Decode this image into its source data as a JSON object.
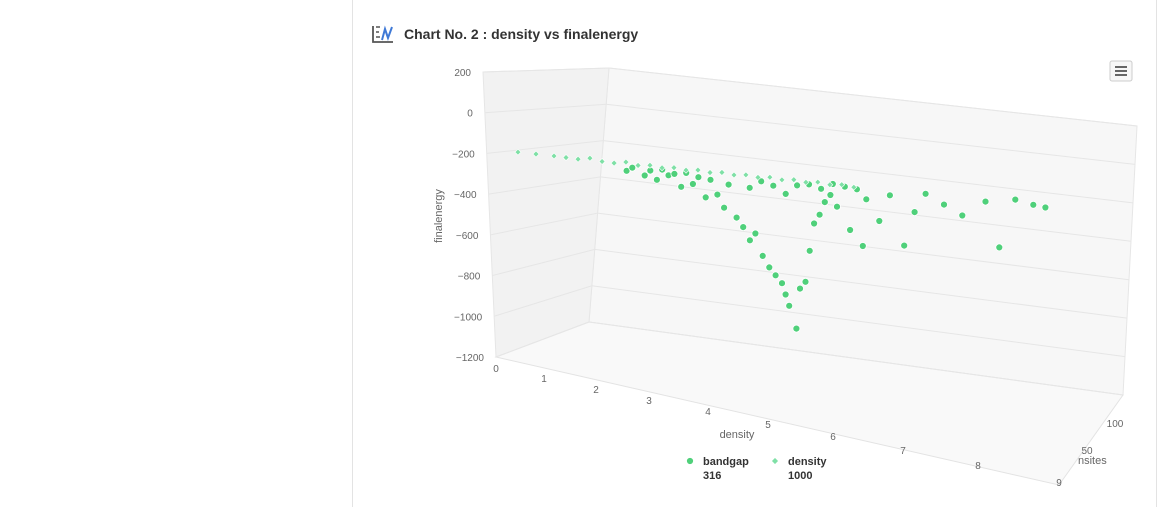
{
  "header": {
    "title": "Chart No. 2 : density vs finalenergy"
  },
  "icons": {
    "chart_icon": "line-chart-icon",
    "menu_icon": "hamburger-menu-icon"
  },
  "colors": {
    "bandgap": "#4fd07a",
    "density": "#7fe0a6",
    "grid": "#e6e6e6"
  },
  "chart_data": {
    "type": "scatter",
    "title": "Chart No. 2 : density vs finalenergy",
    "xlabel": "density",
    "ylabel": "finalenergy",
    "zlabel": "nsites",
    "x_ticks": [
      "0",
      "1",
      "2",
      "3",
      "4",
      "5",
      "6",
      "7",
      "8",
      "9"
    ],
    "y_ticks": [
      "200",
      "0",
      "−200",
      "−400",
      "−600",
      "−800",
      "−1000",
      "−1200"
    ],
    "z_ticks": [
      "50",
      "100"
    ],
    "xlim": [
      0,
      9
    ],
    "ylim": [
      -1200,
      200
    ],
    "zlim": [
      0,
      100
    ],
    "grid": true,
    "legend_position": "bottom",
    "series": [
      {
        "name": "bandgap",
        "count": "316",
        "marker": "circle",
        "points": [
          [
            2.0,
            -80
          ],
          [
            2.3,
            -100
          ],
          [
            2.5,
            -120
          ],
          [
            2.7,
            -90
          ],
          [
            2.9,
            -150
          ],
          [
            3.1,
            -130
          ],
          [
            3.3,
            -200
          ],
          [
            3.5,
            -180
          ],
          [
            3.6,
            -250
          ],
          [
            3.8,
            -300
          ],
          [
            3.9,
            -350
          ],
          [
            4.0,
            -420
          ],
          [
            4.1,
            -380
          ],
          [
            4.2,
            -500
          ],
          [
            4.3,
            -560
          ],
          [
            4.4,
            -600
          ],
          [
            4.5,
            -640
          ],
          [
            4.55,
            -700
          ],
          [
            4.6,
            -760
          ],
          [
            4.7,
            -880
          ],
          [
            4.8,
            -660
          ],
          [
            4.9,
            -620
          ],
          [
            5.0,
            -450
          ],
          [
            5.1,
            -300
          ],
          [
            5.2,
            -250
          ],
          [
            5.3,
            -180
          ],
          [
            5.4,
            -140
          ],
          [
            5.5,
            -200
          ],
          [
            5.7,
            -320
          ],
          [
            5.9,
            -400
          ],
          [
            6.0,
            -150
          ],
          [
            6.2,
            -260
          ],
          [
            6.4,
            -120
          ],
          [
            6.6,
            -380
          ],
          [
            6.8,
            -200
          ],
          [
            7.0,
            -100
          ],
          [
            7.3,
            -150
          ],
          [
            7.6,
            -200
          ],
          [
            8.0,
            -120
          ],
          [
            8.2,
            -350
          ],
          [
            8.5,
            -100
          ],
          [
            8.8,
            -120
          ],
          [
            9.0,
            -130
          ],
          [
            2.1,
            -60
          ],
          [
            2.4,
            -70
          ],
          [
            2.6,
            -60
          ],
          [
            2.8,
            -80
          ],
          [
            3.0,
            -70
          ],
          [
            3.2,
            -90
          ],
          [
            3.4,
            -100
          ],
          [
            3.7,
            -120
          ],
          [
            4.05,
            -130
          ],
          [
            4.25,
            -90
          ],
          [
            4.45,
            -110
          ],
          [
            4.65,
            -150
          ],
          [
            4.85,
            -100
          ],
          [
            5.05,
            -90
          ],
          [
            5.25,
            -110
          ],
          [
            5.45,
            -80
          ],
          [
            5.65,
            -90
          ],
          [
            5.85,
            -100
          ]
        ]
      },
      {
        "name": "density",
        "count": "1000",
        "marker": "diamond",
        "points": [
          [
            0.2,
            -10
          ],
          [
            0.5,
            -15
          ],
          [
            0.8,
            -20
          ],
          [
            1.0,
            -25
          ],
          [
            1.2,
            -30
          ],
          [
            1.4,
            -20
          ],
          [
            1.6,
            -35
          ],
          [
            1.8,
            -40
          ],
          [
            2.0,
            -30
          ],
          [
            2.2,
            -45
          ],
          [
            2.4,
            -40
          ],
          [
            2.6,
            -50
          ],
          [
            2.8,
            -45
          ],
          [
            3.0,
            -55
          ],
          [
            3.2,
            -50
          ],
          [
            3.4,
            -60
          ],
          [
            3.6,
            -55
          ],
          [
            3.8,
            -65
          ],
          [
            4.0,
            -60
          ],
          [
            4.2,
            -70
          ],
          [
            4.4,
            -65
          ],
          [
            4.6,
            -75
          ],
          [
            4.8,
            -70
          ],
          [
            5.0,
            -80
          ],
          [
            5.2,
            -75
          ],
          [
            5.4,
            -85
          ],
          [
            5.6,
            -80
          ],
          [
            5.8,
            -90
          ]
        ]
      }
    ]
  }
}
